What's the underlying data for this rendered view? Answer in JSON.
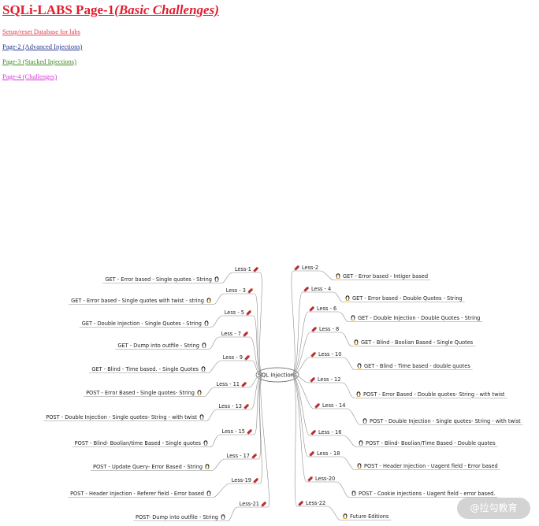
{
  "header": {
    "title_main": "SQLi-LABS Page-1",
    "title_sub": "(Basic Challenges)"
  },
  "nav": [
    {
      "label": "Setup/reset Database for labs",
      "color": "#e4404f"
    },
    {
      "label": "Page-2 (Advanced Injections)",
      "color": "#23368f"
    },
    {
      "label": "Page-3 (Stacked Injections)",
      "color": "#3f8a1f"
    },
    {
      "label": "Page-4 (Challenges)",
      "color": "#d63ad6"
    }
  ],
  "mindmap": {
    "center": "SQL Injections",
    "left": [
      {
        "less": "Less-1",
        "desc": "GET - Error based - Single quotes - String"
      },
      {
        "less": "Less - 3",
        "desc": "GET - Error based - Single quotes with twist - string"
      },
      {
        "less": "Less - 5",
        "desc": "GET - Double Injection - Single Quotes - String"
      },
      {
        "less": "Less - 7",
        "desc": "GET - Dump into outfile - String"
      },
      {
        "less": "Less - 9",
        "desc": "GET - Blind - Time based. -  Single Quotes"
      },
      {
        "less": "Less - 11",
        "desc": "POST - Error Based - Single quotes- String"
      },
      {
        "less": "Less - 13",
        "desc": "POST - Double Injection - Single quotes- String - with twist"
      },
      {
        "less": "Less - 15",
        "desc": "POST - Blind- Boolian/time Based - Single quotes"
      },
      {
        "less": "Less - 17",
        "desc": "POST - Update Query- Error Based - String"
      },
      {
        "less": "Less-19",
        "desc": "POST - Header Injection - Referer field - Error based"
      },
      {
        "less": "Less-21",
        "desc": "POST- Dump into outfile - String"
      }
    ],
    "right": [
      {
        "less": "Less-2",
        "desc": "GET - Error based - Intiger based"
      },
      {
        "less": "Less - 4",
        "desc": "GET - Error based - Double Quotes - String"
      },
      {
        "less": "Less - 6",
        "desc": "GET - Double Injection - Double Quotes - String"
      },
      {
        "less": "Less - 8",
        "desc": "GET - Blind - Boolian Based - Single Quotes"
      },
      {
        "less": "Less - 10",
        "desc": "GET - Blind - Time based - double quotes"
      },
      {
        "less": "Less - 12",
        "desc": "POST - Error Based - Double quotes- String - with twist"
      },
      {
        "less": "Less - 14",
        "desc": "POST - Double Injection - Single quotes- String - with twist"
      },
      {
        "less": "Less - 16",
        "desc": "POST - Blind- Boolian/Time Based - Double quotes"
      },
      {
        "less": "Less - 18",
        "desc": "POST - Header Injection - Uagent field - Error based"
      },
      {
        "less": "Less-20",
        "desc": "POST - Cookie injections - Uagent field - error based."
      },
      {
        "less": "Less-22",
        "desc": "Future Editions"
      }
    ]
  },
  "watermark": "@拉勾教育",
  "colors": {
    "line": "#8e8e8e",
    "title": "#e01d2f"
  }
}
